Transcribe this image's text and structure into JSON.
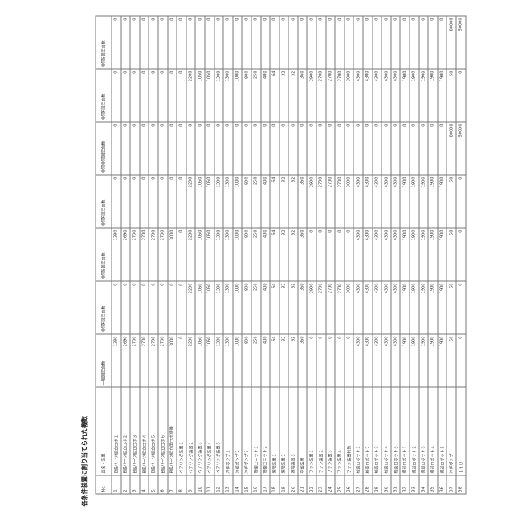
{
  "title": "各条件装置に割り当てられた機数",
  "columns": [
    "No.",
    "品名・装置",
    "一般固定台数",
    "非常F固定台数",
    "非常S固定台数",
    "非常F固定台数",
    "非常非常固定台数",
    "非常F固定台数",
    "非常S固定台数"
  ],
  "rows": [
    {
      "no": "1",
      "name": "B級パーツ組立ロボ１",
      "v": [
        1380,
        0,
        1380,
        0,
        0,
        0,
        0
      ]
    },
    {
      "no": "2",
      "name": "B級パーツ組立ロボ２",
      "v": [
        2690,
        0,
        2690,
        0,
        0,
        0,
        0
      ]
    },
    {
      "no": "3",
      "name": "B級パーツ組立ロボ３",
      "v": [
        2700,
        0,
        2700,
        0,
        0,
        0,
        0
      ]
    },
    {
      "no": "4",
      "name": "B級パーツ組立ロボ４",
      "v": [
        2700,
        0,
        2700,
        0,
        0,
        0,
        0
      ]
    },
    {
      "no": "5",
      "name": "B級パーツ組立ロボ５",
      "v": [
        2700,
        0,
        2700,
        0,
        0,
        0,
        0
      ]
    },
    {
      "no": "6",
      "name": "B級パーツ組立ロボ６",
      "v": [
        2700,
        0,
        2700,
        0,
        0,
        0,
        0
      ]
    },
    {
      "no": "7",
      "name": "B級パーツ組立用ロボ特殊",
      "v": [
        3000,
        0,
        3000,
        0,
        0,
        0,
        0
      ]
    },
    {
      "no": "8",
      "name": "ベアリング装置１",
      "v": [
        0,
        0,
        0,
        0,
        0,
        0,
        0
      ]
    },
    {
      "no": "9",
      "name": "ベアリング装置２",
      "v": [
        2200,
        2200,
        2200,
        2200,
        0,
        2200,
        0
      ]
    },
    {
      "no": "10",
      "name": "ベアリング装置３",
      "v": [
        1050,
        1050,
        1050,
        1050,
        0,
        1050,
        0
      ]
    },
    {
      "no": "11",
      "name": "ベアリング装置４",
      "v": [
        1050,
        1050,
        1050,
        1050,
        0,
        1050,
        0
      ]
    },
    {
      "no": "12",
      "name": "ベアリング装置５",
      "v": [
        1300,
        1300,
        1300,
        1300,
        0,
        1300,
        0
      ]
    },
    {
      "no": "13",
      "name": "冷却ポンプ１",
      "v": [
        1300,
        1300,
        1300,
        1300,
        0,
        1300,
        0
      ]
    },
    {
      "no": "14",
      "name": "冷却ポンプ２",
      "v": [
        1000,
        1000,
        1000,
        1000,
        0,
        1000,
        0
      ]
    },
    {
      "no": "15",
      "name": "冷却ポンプ３",
      "v": [
        800,
        800,
        800,
        800,
        0,
        800,
        0
      ]
    },
    {
      "no": "16",
      "name": "制御ユニット１",
      "v": [
        250,
        250,
        250,
        250,
        0,
        250,
        0
      ]
    },
    {
      "no": "17",
      "name": "制御ユニット２",
      "v": [
        400,
        400,
        400,
        400,
        0,
        400,
        0
      ]
    },
    {
      "no": "18",
      "name": "照明装置１",
      "v": [
        64,
        64,
        64,
        64,
        0,
        64,
        0
      ]
    },
    {
      "no": "19",
      "name": "照明装置２",
      "v": [
        32,
        32,
        32,
        32,
        0,
        32,
        0
      ]
    },
    {
      "no": "20",
      "name": "照明装置３",
      "v": [
        32,
        32,
        32,
        32,
        0,
        32,
        0
      ]
    },
    {
      "no": "21",
      "name": "空調装置",
      "v": [
        360,
        360,
        360,
        360,
        0,
        360,
        0
      ]
    },
    {
      "no": "22",
      "name": "ファン装置１",
      "v": [
        0,
        2900,
        0,
        2900,
        0,
        2900,
        0
      ]
    },
    {
      "no": "23",
      "name": "ファン装置２",
      "v": [
        0,
        2700,
        0,
        2700,
        0,
        2700,
        0
      ]
    },
    {
      "no": "24",
      "name": "ファン装置３",
      "v": [
        0,
        2700,
        0,
        2700,
        0,
        2700,
        0
      ]
    },
    {
      "no": "25",
      "name": "ファン装置４",
      "v": [
        0,
        2700,
        0,
        2700,
        0,
        2700,
        0
      ]
    },
    {
      "no": "26",
      "name": "ファン装置特殊",
      "v": [
        0,
        3000,
        0,
        3000,
        0,
        3000,
        0
      ]
    },
    {
      "no": "27",
      "name": "検査ロボット１",
      "v": [
        4300,
        4300,
        4300,
        4300,
        0,
        4300,
        0
      ]
    },
    {
      "no": "28",
      "name": "検査ロボット２",
      "v": [
        4300,
        4300,
        4300,
        4300,
        0,
        4300,
        0
      ]
    },
    {
      "no": "29",
      "name": "検査ロボット３",
      "v": [
        4300,
        4300,
        4300,
        4300,
        0,
        4300,
        0
      ]
    },
    {
      "no": "30",
      "name": "検査ロボット４",
      "v": [
        4300,
        4300,
        4300,
        4300,
        0,
        4300,
        0
      ]
    },
    {
      "no": "31",
      "name": "検査ロボット５",
      "v": [
        4300,
        4300,
        4300,
        4300,
        0,
        4300,
        0
      ]
    },
    {
      "no": "32",
      "name": "搬送ロボット１",
      "v": [
        1900,
        1900,
        1900,
        1900,
        0,
        1900,
        0
      ]
    },
    {
      "no": "33",
      "name": "搬送ロボット２",
      "v": [
        1900,
        1900,
        1900,
        1900,
        0,
        1900,
        0
      ]
    },
    {
      "no": "34",
      "name": "搬送ロボット３",
      "v": [
        1900,
        1900,
        1900,
        1900,
        0,
        1900,
        0
      ]
    },
    {
      "no": "35",
      "name": "搬送ロボット４",
      "v": [
        1900,
        1900,
        1900,
        1900,
        0,
        1900,
        0
      ]
    },
    {
      "no": "36",
      "name": "搬送ロボット５",
      "v": [
        1900,
        1900,
        1900,
        1900,
        0,
        1900,
        0
      ]
    },
    {
      "no": "37",
      "name": "冷却ポンプ",
      "v": [
        50,
        50,
        50,
        50,
        80000,
        50,
        80000
      ]
    },
    {
      "no": "38",
      "name": "ＬＥＤ",
      "v": [
        0,
        0,
        0,
        0,
        50000,
        0,
        50000
      ]
    }
  ]
}
